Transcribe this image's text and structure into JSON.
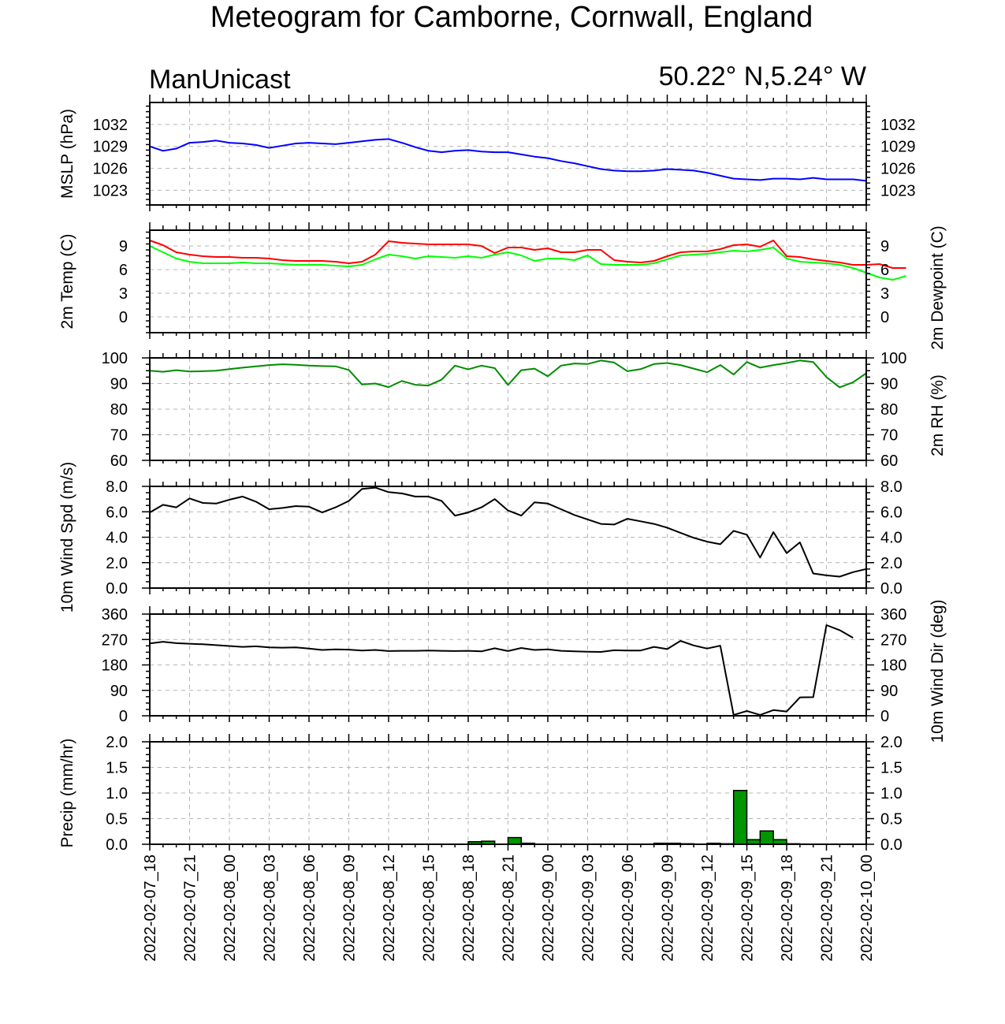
{
  "title": "Meteogram for Camborne, Cornwall, England",
  "model": "ManUnicast",
  "location": "50.22° N,5.24° W",
  "time_labels": [
    "2022-02-07_18",
    "2022-02-07_21",
    "2022-02-08_00",
    "2022-02-08_03",
    "2022-02-08_06",
    "2022-02-08_09",
    "2022-02-08_12",
    "2022-02-08_15",
    "2022-02-08_18",
    "2022-02-08_21",
    "2022-02-09_00",
    "2022-02-09_03",
    "2022-02-09_06",
    "2022-02-09_09",
    "2022-02-09_12",
    "2022-02-09_15",
    "2022-02-09_18",
    "2022-02-09_21",
    "2022-02-10_00"
  ],
  "colors": {
    "mslp": "#0000ff",
    "temp": "#ff0000",
    "dewpoint": "#00ff00",
    "rh": "#008c00",
    "wind": "#000000",
    "precip": "#009600"
  },
  "chart_data": [
    {
      "type": "line",
      "id": "mslp",
      "ylabel_left": "MSLP (hPa)",
      "ylim": [
        1021,
        1035
      ],
      "ticks": [
        "1023",
        "1026",
        "1029",
        "1032"
      ],
      "tick_values": [
        1023,
        1026,
        1029,
        1032
      ],
      "right_ticks": true,
      "series": [
        {
          "values": [
            1029.0,
            1028.4,
            1028.7,
            1029.5,
            1029.6,
            1029.8,
            1029.5,
            1029.4,
            1029.2,
            1028.8,
            1029.1,
            1029.4,
            1029.5,
            1029.4,
            1029.3,
            1029.5,
            1029.7,
            1029.9,
            1030.0,
            1029.5,
            1028.9,
            1028.4,
            1028.2,
            1028.4,
            1028.5,
            1028.3,
            1028.2,
            1028.2,
            1027.9,
            1027.6,
            1027.4,
            1027.0,
            1026.7,
            1026.3,
            1025.9,
            1025.7,
            1025.6,
            1025.6,
            1025.7,
            1025.9,
            1025.8,
            1025.7,
            1025.4,
            1025.0,
            1024.6,
            1024.5,
            1024.4,
            1024.6,
            1024.6,
            1024.5,
            1024.7,
            1024.5,
            1024.5,
            1024.5,
            1024.3
          ]
        }
      ]
    },
    {
      "type": "line",
      "id": "temp",
      "ylabel_left": "2m Temp (C)",
      "ylabel_right": "2m Dewpoint (C)",
      "ylim": [
        -2,
        11
      ],
      "ticks": [
        "0",
        "3",
        "6",
        "9"
      ],
      "tick_values": [
        0,
        3,
        6,
        9
      ],
      "right_ticks": true,
      "series": [
        {
          "values": [
            9.7,
            9.1,
            8.2,
            7.9,
            7.7,
            7.6,
            7.6,
            7.5,
            7.5,
            7.4,
            7.2,
            7.1,
            7.1,
            7.1,
            7.0,
            6.8,
            7.0,
            7.9,
            9.6,
            9.4,
            9.3,
            9.2,
            9.2,
            9.2,
            9.2,
            9.0,
            8.1,
            8.8,
            8.8,
            8.5,
            8.7,
            8.2,
            8.2,
            8.5,
            8.5,
            7.2,
            7.0,
            6.9,
            7.1,
            7.7,
            8.2,
            8.3,
            8.3,
            8.6,
            9.1,
            9.2,
            8.9,
            9.7,
            7.7,
            7.6,
            7.3,
            7.1,
            6.9,
            6.6,
            6.6,
            6.7,
            6.2,
            6.2
          ]
        },
        {
          "values": [
            9.0,
            8.2,
            7.4,
            7.0,
            6.8,
            6.8,
            6.8,
            6.9,
            6.8,
            6.8,
            6.7,
            6.6,
            6.6,
            6.6,
            6.5,
            6.4,
            6.6,
            7.3,
            7.9,
            7.7,
            7.4,
            7.7,
            7.6,
            7.5,
            7.7,
            7.5,
            7.9,
            8.2,
            7.8,
            7.1,
            7.4,
            7.4,
            7.2,
            7.8,
            6.7,
            6.6,
            6.6,
            6.6,
            6.8,
            7.3,
            7.8,
            7.9,
            8.0,
            8.2,
            8.4,
            8.3,
            8.5,
            8.8,
            7.4,
            7.0,
            6.9,
            6.8,
            6.6,
            6.2,
            5.6,
            5.0,
            4.7,
            5.2
          ]
        }
      ]
    },
    {
      "type": "line",
      "id": "rh",
      "ylabel_right": "2m RH (%)",
      "ylim": [
        60,
        100
      ],
      "ticks": [
        "60",
        "70",
        "80",
        "90",
        "100"
      ],
      "tick_values": [
        60,
        70,
        80,
        90,
        100
      ],
      "right_ticks": true,
      "series": [
        {
          "values": [
            95.0,
            94.6,
            95.2,
            94.7,
            94.8,
            95.0,
            95.6,
            96.2,
            96.7,
            97.2,
            97.5,
            97.3,
            97.0,
            96.8,
            96.7,
            95.3,
            89.6,
            90.0,
            88.6,
            91.0,
            89.5,
            89.2,
            91.5,
            97.0,
            95.5,
            97.0,
            96.0,
            89.4,
            95.2,
            95.8,
            92.8,
            97.0,
            97.8,
            97.6,
            99.0,
            98.2,
            94.8,
            95.6,
            97.6,
            98.0,
            97.2,
            95.8,
            94.4,
            97.2,
            93.5,
            98.4,
            96.2,
            97.2,
            98.0,
            99.0,
            98.4,
            92.5,
            88.5,
            90.5,
            94.0
          ]
        }
      ]
    },
    {
      "type": "line",
      "id": "wind_speed",
      "ylabel_left": "10m Wind Spd (m/s)",
      "ylim": [
        0,
        8
      ],
      "ticks": [
        "0.0",
        "2.0",
        "4.0",
        "6.0",
        "8.0"
      ],
      "tick_values": [
        0,
        2,
        4,
        6,
        8
      ],
      "right_ticks": true,
      "series": [
        {
          "values": [
            5.95,
            6.55,
            6.35,
            7.05,
            6.7,
            6.65,
            6.95,
            7.2,
            6.8,
            6.2,
            6.3,
            6.45,
            6.4,
            5.95,
            6.35,
            6.85,
            7.8,
            7.9,
            7.55,
            7.45,
            7.2,
            7.2,
            6.85,
            5.7,
            5.95,
            6.35,
            7.0,
            6.1,
            5.7,
            6.75,
            6.65,
            6.2,
            5.75,
            5.4,
            5.05,
            5.0,
            5.45,
            5.25,
            5.05,
            4.75,
            4.35,
            3.95,
            3.65,
            3.45,
            4.5,
            4.2,
            2.4,
            4.4,
            2.75,
            3.6,
            1.15,
            1.0,
            0.9,
            1.25,
            1.5
          ]
        }
      ]
    },
    {
      "type": "line",
      "id": "wind_dir",
      "ylabel_right": "10m Wind Dir (deg)",
      "ylim": [
        0,
        360
      ],
      "ticks": [
        "0",
        "90",
        "180",
        "270",
        "360"
      ],
      "tick_values": [
        0,
        90,
        180,
        270,
        360
      ],
      "right_ticks": true,
      "series": [
        {
          "values": [
            256,
            262,
            257,
            255,
            253,
            250,
            247,
            244,
            246,
            242,
            241,
            242,
            238,
            233,
            235,
            234,
            231,
            233,
            229,
            230,
            230,
            231,
            230,
            229,
            230,
            228,
            239,
            229,
            240,
            233,
            235,
            230,
            228,
            227,
            226,
            232,
            231,
            231,
            244,
            236,
            265,
            249,
            238,
            248,
            3,
            17,
            3,
            20,
            15,
            65,
            66,
            321,
            303,
            276
          ]
        }
      ]
    },
    {
      "type": "bar",
      "id": "precip",
      "ylabel_left": "Precip (mm/hr)",
      "ylim": [
        0,
        2.0
      ],
      "ticks": [
        "0.0",
        "0.5",
        "1.0",
        "1.5",
        "2.0"
      ],
      "tick_values": [
        0,
        0.5,
        1.0,
        1.5,
        2.0
      ],
      "right_ticks": true,
      "bars": [
        {
          "x": 24,
          "value": 0.05
        },
        {
          "x": 25,
          "value": 0.06
        },
        {
          "x": 27,
          "value": 0.13
        },
        {
          "x": 28,
          "value": 0.02
        },
        {
          "x": 38,
          "value": 0.02
        },
        {
          "x": 39,
          "value": 0.02
        },
        {
          "x": 40,
          "value": 0.01
        },
        {
          "x": 42,
          "value": 0.02
        },
        {
          "x": 43,
          "value": 0.01
        },
        {
          "x": 44,
          "value": 1.05
        },
        {
          "x": 45,
          "value": 0.09
        },
        {
          "x": 46,
          "value": 0.26
        },
        {
          "x": 47,
          "value": 0.09
        },
        {
          "x": 48,
          "value": 0.01
        }
      ]
    }
  ]
}
